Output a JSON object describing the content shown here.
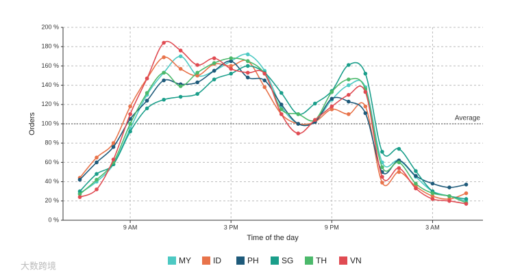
{
  "chart_data": {
    "type": "line",
    "x_label": "Time of the day",
    "y_label": "Orders",
    "x": [
      6,
      7,
      8,
      9,
      10,
      11,
      12,
      13,
      14,
      15,
      16,
      17,
      18,
      19,
      20,
      21,
      22,
      23,
      24,
      25,
      26,
      27,
      28,
      29
    ],
    "xlim": [
      5,
      30
    ],
    "xticks": [
      {
        "value": 9,
        "label": "9 AM"
      },
      {
        "value": 15,
        "label": "3 PM"
      },
      {
        "value": 21,
        "label": "9 PM"
      },
      {
        "value": 27,
        "label": "3 AM"
      }
    ],
    "ylim": [
      0,
      200
    ],
    "yticks": [
      {
        "value": 0,
        "label": "0 %"
      },
      {
        "value": 20,
        "label": "20 %"
      },
      {
        "value": 40,
        "label": "40 %"
      },
      {
        "value": 60,
        "label": "60 %"
      },
      {
        "value": 80,
        "label": "80 %"
      },
      {
        "value": 100,
        "label": "100 %"
      },
      {
        "value": 120,
        "label": "120 %"
      },
      {
        "value": 140,
        "label": "140 %"
      },
      {
        "value": 160,
        "label": "160 %"
      },
      {
        "value": 180,
        "label": "180 %"
      },
      {
        "value": 200,
        "label": "200 %"
      }
    ],
    "grid": true,
    "reference_line": {
      "value": 100,
      "label": "Average"
    },
    "series": [
      {
        "name": "MY",
        "color": "#4dc9c3",
        "values": [
          28,
          40,
          58,
          95,
          130,
          153,
          170,
          150,
          155,
          165,
          172,
          155,
          118,
          100,
          102,
          125,
          140,
          138,
          60,
          62,
          45,
          30,
          25,
          20
        ]
      },
      {
        "name": "ID",
        "color": "#e8734a",
        "values": [
          44,
          65,
          80,
          118,
          147,
          169,
          157,
          150,
          162,
          160,
          165,
          138,
          110,
          100,
          102,
          115,
          110,
          118,
          39,
          50,
          35,
          25,
          22,
          28
        ]
      },
      {
        "name": "PH",
        "color": "#1e5a7a",
        "values": [
          42,
          60,
          76,
          105,
          124,
          145,
          141,
          143,
          155,
          165,
          148,
          145,
          120,
          100,
          102,
          126,
          123,
          111,
          50,
          62,
          46,
          38,
          34,
          37
        ]
      },
      {
        "name": "SG",
        "color": "#1a9e8a",
        "values": [
          30,
          48,
          58,
          92,
          116,
          125,
          128,
          131,
          146,
          152,
          160,
          153,
          132,
          110,
          121,
          134,
          161,
          152,
          71,
          74,
          51,
          30,
          25,
          22
        ]
      },
      {
        "name": "TH",
        "color": "#4cb96b",
        "values": [
          27,
          42,
          60,
          100,
          132,
          153,
          139,
          153,
          163,
          168,
          165,
          152,
          115,
          110,
          104,
          133,
          146,
          136,
          55,
          60,
          38,
          28,
          25,
          18
        ]
      },
      {
        "name": "VN",
        "color": "#e04b52",
        "values": [
          24,
          32,
          63,
          110,
          147,
          184,
          176,
          161,
          168,
          157,
          153,
          152,
          110,
          90,
          104,
          118,
          130,
          133,
          45,
          54,
          33,
          22,
          20,
          17
        ]
      }
    ]
  },
  "watermark": "大数跨境"
}
